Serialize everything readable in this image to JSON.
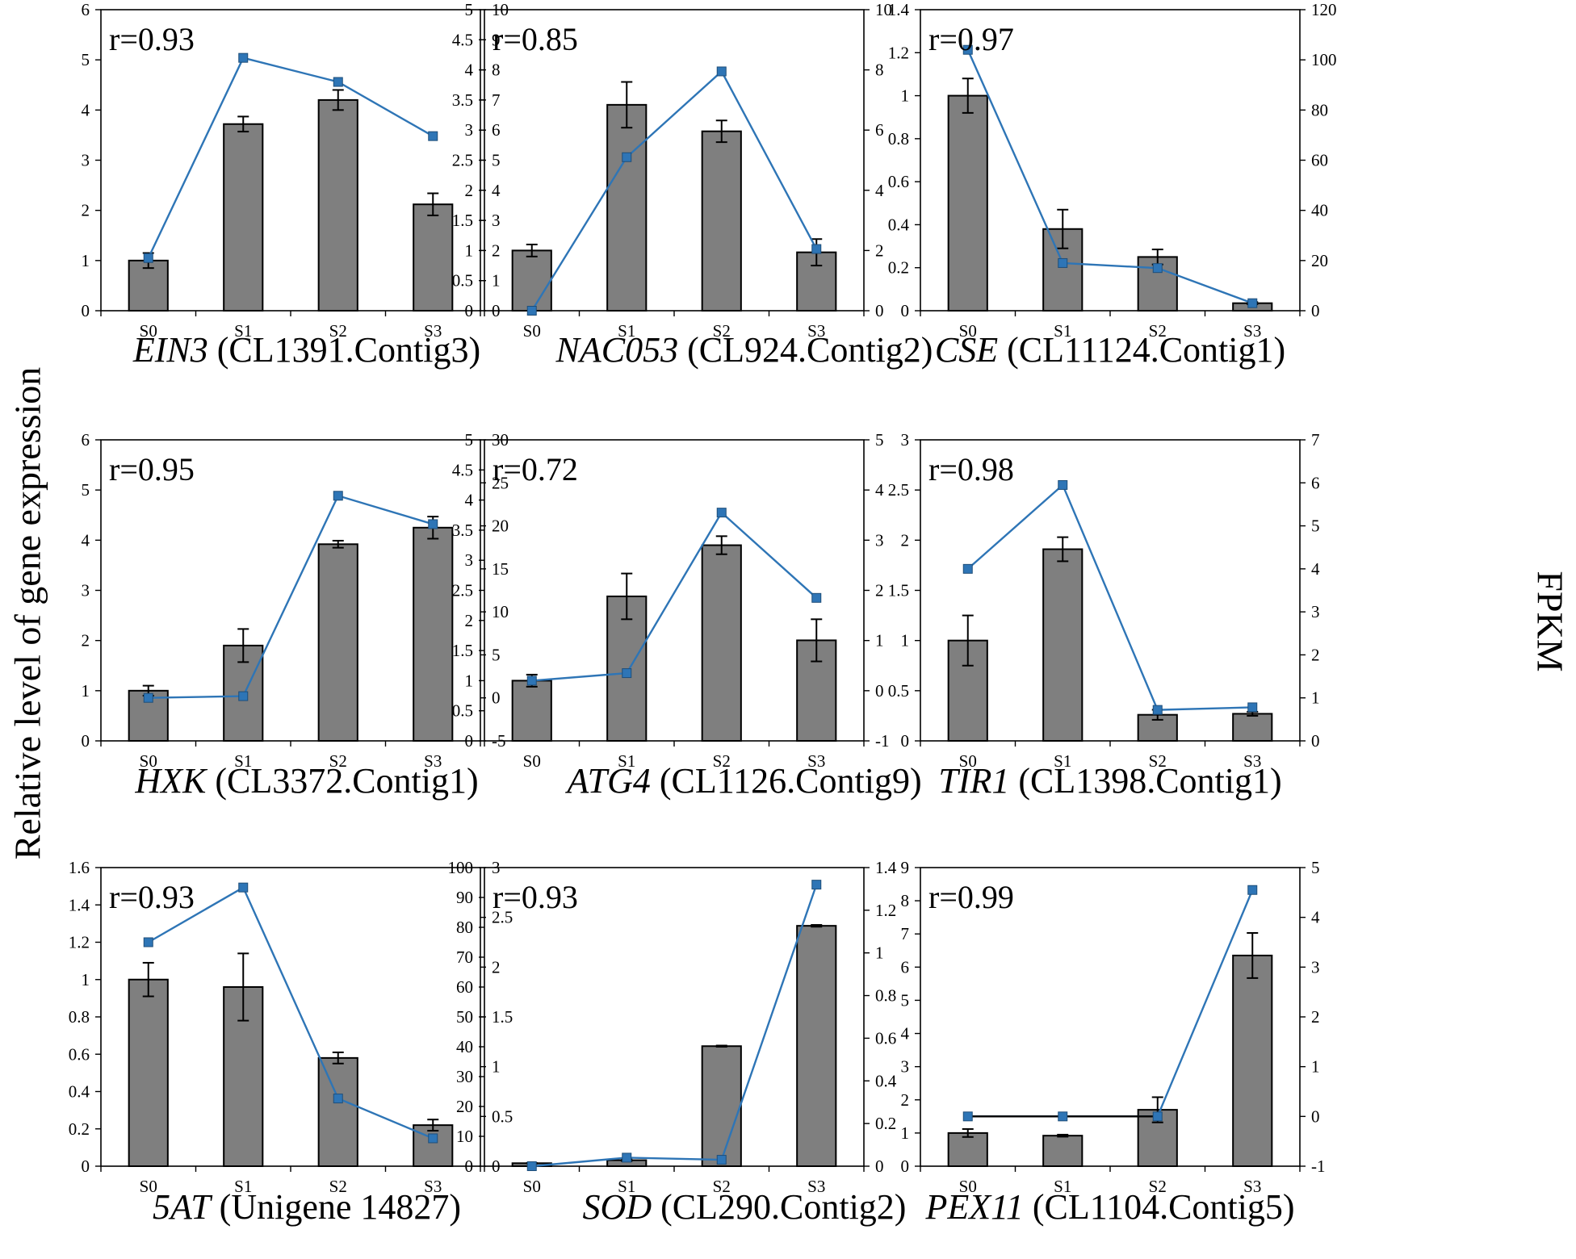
{
  "figure": {
    "left_axis_label": "Relative  level of gene expression",
    "right_axis_label": "FPKM",
    "colors": {
      "bar": "#7f7f7f",
      "bar_edge": "#000000",
      "line": "#2e75b6",
      "marker": "#2e75b6",
      "marker_edge": "#1f4e79"
    }
  },
  "chart_data": [
    {
      "type": "bar+line",
      "gene": "EIN3",
      "contig": "(CL1391.Contig3)",
      "r_label": "r=0.93",
      "categories": [
        "S0",
        "S1",
        "S2",
        "S3"
      ],
      "left": {
        "ticks": [
          "0",
          "1",
          "2",
          "3",
          "4",
          "5",
          "6"
        ],
        "ylim": [
          0,
          6
        ],
        "values": [
          1.0,
          3.72,
          4.2,
          2.12
        ],
        "errors": [
          0.15,
          0.15,
          0.2,
          0.22
        ]
      },
      "right": {
        "ticks": [
          "0",
          "1",
          "2",
          "3",
          "4",
          "5",
          "6",
          "7",
          "8",
          "9",
          "10"
        ],
        "ylim": [
          0,
          10
        ],
        "values": [
          1.75,
          8.4,
          7.6,
          5.8
        ]
      }
    },
    {
      "type": "bar+line",
      "gene": "NAC053",
      "contig": "(CL924.Contig2)",
      "r_label": "r=0.85",
      "categories": [
        "S0",
        "S1",
        "S2",
        "S3"
      ],
      "left": {
        "ticks": [
          "0",
          "0.5",
          "1",
          "1.5",
          "2",
          "2.5",
          "3",
          "3.5",
          "4",
          "4.5",
          "5"
        ],
        "ylim": [
          0,
          5
        ],
        "values": [
          1.0,
          3.42,
          2.98,
          0.97
        ],
        "errors": [
          0.1,
          0.38,
          0.18,
          0.22
        ]
      },
      "right": {
        "ticks": [
          "0",
          "2",
          "4",
          "6",
          "8",
          "10"
        ],
        "ylim": [
          0,
          10
        ],
        "values": [
          0.0,
          5.1,
          7.95,
          2.05
        ]
      }
    },
    {
      "type": "bar+line",
      "gene": "CSE",
      "contig": "(CL11124.Contig1)",
      "r_label": "r=0.97",
      "categories": [
        "S0",
        "S1",
        "S2",
        "S3"
      ],
      "left": {
        "ticks": [
          "0",
          "0.2",
          "0.4",
          "0.6",
          "0.8",
          "1",
          "1.2",
          "1.4"
        ],
        "ylim": [
          0,
          1.4
        ],
        "values": [
          1.0,
          0.38,
          0.25,
          0.035
        ],
        "errors": [
          0.08,
          0.09,
          0.035,
          0.005
        ]
      },
      "right": {
        "ticks": [
          "0",
          "20",
          "40",
          "60",
          "80",
          "100",
          "120"
        ],
        "ylim": [
          0,
          120
        ],
        "values": [
          104,
          19,
          17,
          3
        ]
      }
    },
    {
      "type": "bar+line",
      "gene": "HXK",
      "contig": "(CL3372.Contig1)",
      "r_label": "r=0.95",
      "categories": [
        "S0",
        "S1",
        "S2",
        "S3"
      ],
      "left": {
        "ticks": [
          "0",
          "1",
          "2",
          "3",
          "4",
          "5",
          "6"
        ],
        "ylim": [
          0,
          6
        ],
        "values": [
          1.0,
          1.9,
          3.92,
          4.25
        ],
        "errors": [
          0.1,
          0.33,
          0.07,
          0.22
        ]
      },
      "right": {
        "ticks": [
          "-5",
          "0",
          "5",
          "10",
          "15",
          "20",
          "25",
          "30"
        ],
        "ylim": [
          -5,
          30
        ],
        "values": [
          0.0,
          0.2,
          23.5,
          20.2
        ]
      }
    },
    {
      "type": "bar+line",
      "gene": "ATG4",
      "contig": "(CL1126.Contig9)",
      "r_label": "r=0.72",
      "categories": [
        "S0",
        "S1",
        "S2",
        "S3"
      ],
      "left": {
        "ticks": [
          "0",
          "0.5",
          "1",
          "1.5",
          "2",
          "2.5",
          "3",
          "3.5",
          "4",
          "4.5",
          "5"
        ],
        "ylim": [
          0,
          5
        ],
        "values": [
          1.0,
          2.4,
          3.25,
          1.67
        ],
        "errors": [
          0.1,
          0.38,
          0.15,
          0.35
        ]
      },
      "right": {
        "ticks": [
          "-1",
          "0",
          "1",
          "2",
          "3",
          "4",
          "5"
        ],
        "ylim": [
          -1,
          5
        ],
        "values": [
          0.2,
          0.35,
          3.55,
          1.85
        ]
      }
    },
    {
      "type": "bar+line",
      "gene": "TIR1",
      "contig": "(CL1398.Contig1)",
      "r_label": "r=0.98",
      "categories": [
        "S0",
        "S1",
        "S2",
        "S3"
      ],
      "left": {
        "ticks": [
          "0",
          "0.5",
          "1",
          "1.5",
          "2",
          "2.5",
          "3"
        ],
        "ylim": [
          0,
          3
        ],
        "values": [
          1.0,
          1.91,
          0.26,
          0.27
        ],
        "errors": [
          0.25,
          0.12,
          0.05,
          0.02
        ]
      },
      "right": {
        "ticks": [
          "0",
          "1",
          "2",
          "3",
          "4",
          "5",
          "6",
          "7"
        ],
        "ylim": [
          0,
          7
        ],
        "values": [
          4.0,
          5.95,
          0.72,
          0.78
        ]
      }
    },
    {
      "type": "bar+line",
      "gene": "5AT",
      "contig": "(Unigene 14827)",
      "r_label": "r=0.93",
      "categories": [
        "S0",
        "S1",
        "S2",
        "S3"
      ],
      "left": {
        "ticks": [
          "0",
          "0.2",
          "0.4",
          "0.6",
          "0.8",
          "1",
          "1.2",
          "1.4",
          "1.6"
        ],
        "ylim": [
          0,
          1.6
        ],
        "values": [
          1.0,
          0.96,
          0.58,
          0.22
        ],
        "errors": [
          0.09,
          0.18,
          0.03,
          0.03
        ]
      },
      "right": {
        "ticks": [
          "0",
          "0.5",
          "1",
          "1.5",
          "2",
          "2.5",
          "3"
        ],
        "ylim": [
          0,
          3
        ],
        "values": [
          2.25,
          2.8,
          0.68,
          0.28
        ]
      }
    },
    {
      "type": "bar+line",
      "gene": "SOD",
      "contig": "(CL290.Contig2)",
      "r_label": "r=0.93",
      "categories": [
        "S0",
        "S1",
        "S2",
        "S3"
      ],
      "left": {
        "ticks": [
          "0",
          "10",
          "20",
          "30",
          "40",
          "50",
          "60",
          "70",
          "80",
          "90",
          "100"
        ],
        "ylim": [
          0,
          100
        ],
        "values": [
          1.0,
          2.0,
          40.2,
          80.5
        ],
        "errors": [
          0.1,
          0.3,
          0.2,
          0.3
        ]
      },
      "right": {
        "ticks": [
          "0",
          "0.2",
          "0.4",
          "0.6",
          "0.8",
          "1",
          "1.2",
          "1.4"
        ],
        "ylim": [
          0,
          1.4
        ],
        "values": [
          0.0,
          0.04,
          0.03,
          1.32
        ]
      }
    },
    {
      "type": "bar+line",
      "gene": "PEX11",
      "contig": "(CL1104.Contig5)",
      "r_label": "r=0.99",
      "categories": [
        "S0",
        "S1",
        "S2",
        "S3"
      ],
      "left": {
        "ticks": [
          "0",
          "1",
          "2",
          "3",
          "4",
          "5",
          "6",
          "7",
          "8",
          "9"
        ],
        "ylim": [
          0,
          9
        ],
        "values": [
          1.0,
          0.92,
          1.7,
          6.35
        ],
        "errors": [
          0.12,
          0.03,
          0.38,
          0.68
        ]
      },
      "right": {
        "ticks": [
          "-1",
          "0",
          "1",
          "2",
          "3",
          "4",
          "5"
        ],
        "ylim": [
          -1,
          5
        ],
        "values": [
          0.0,
          0.0,
          0.0,
          4.55
        ]
      }
    }
  ]
}
